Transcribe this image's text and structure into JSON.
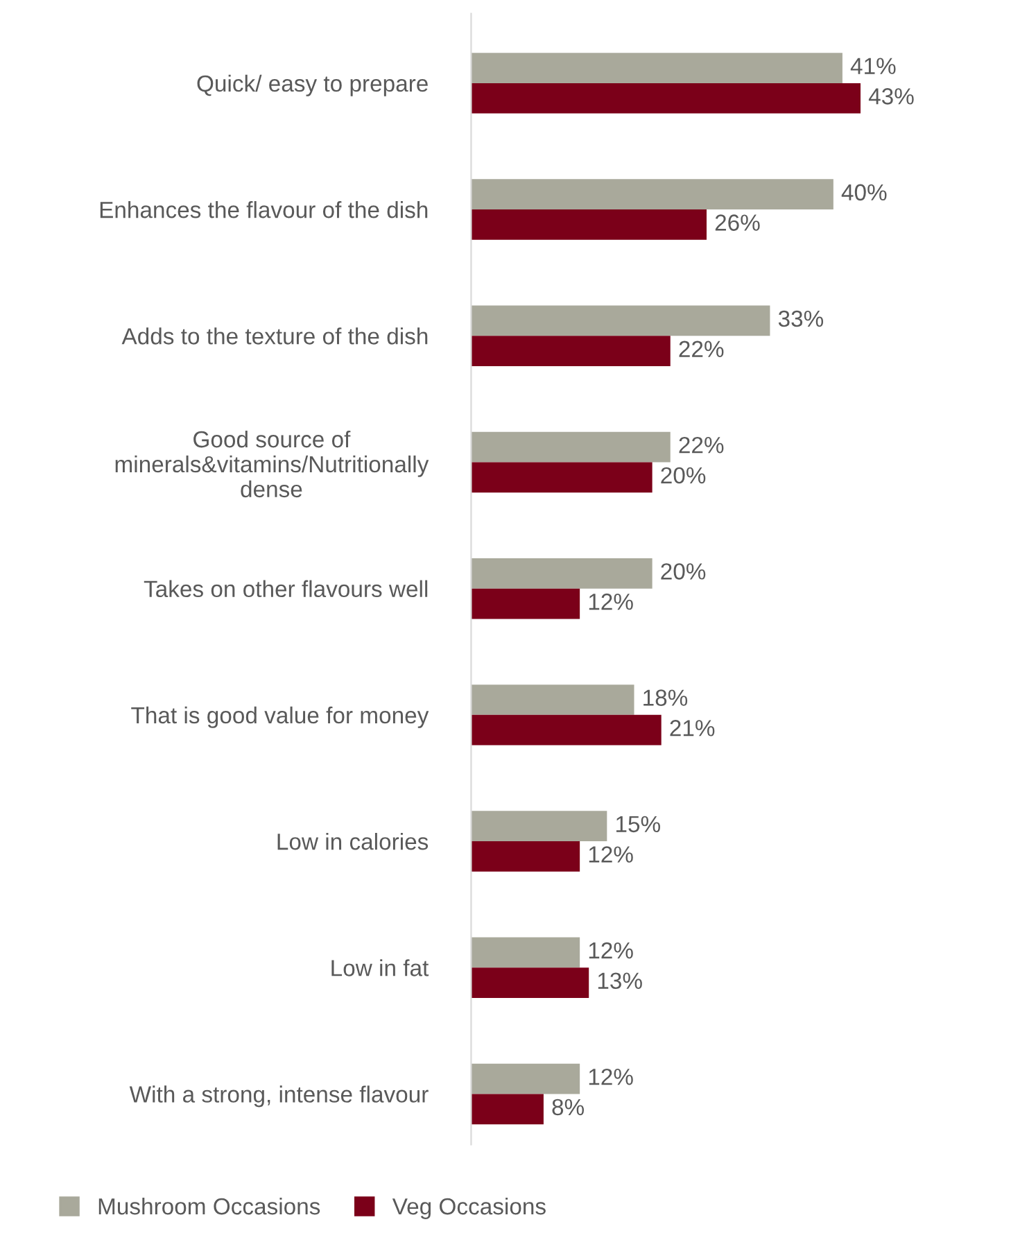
{
  "chart_data": {
    "type": "bar",
    "orientation": "horizontal",
    "categories": [
      "Quick/ easy to prepare",
      "Enhances the flavour of the dish",
      "Adds to the texture of the dish",
      "Good source of\nminerals&vitamins/Nutritionally\ndense",
      "Takes on other flavours well",
      "That is good value for money",
      "Low in calories",
      "Low in fat",
      "With a strong, intense flavour"
    ],
    "series": [
      {
        "name": "Mushroom Occasions",
        "color": "#a9a99b",
        "values": [
          41,
          40,
          33,
          22,
          20,
          18,
          15,
          12,
          12
        ],
        "value_labels": [
          "41%",
          "40%",
          "33%",
          "22%",
          "20%",
          "18%",
          "15%",
          "12%",
          "12%"
        ]
      },
      {
        "name": "Veg Occasions",
        "color": "#7b0019",
        "values": [
          43,
          26,
          22,
          20,
          12,
          21,
          12,
          13,
          8
        ],
        "value_labels": [
          "43%",
          "26%",
          "22%",
          "20%",
          "12%",
          "21%",
          "12%",
          "13%",
          "8%"
        ]
      }
    ],
    "legend": "bottom",
    "grid": false
  }
}
